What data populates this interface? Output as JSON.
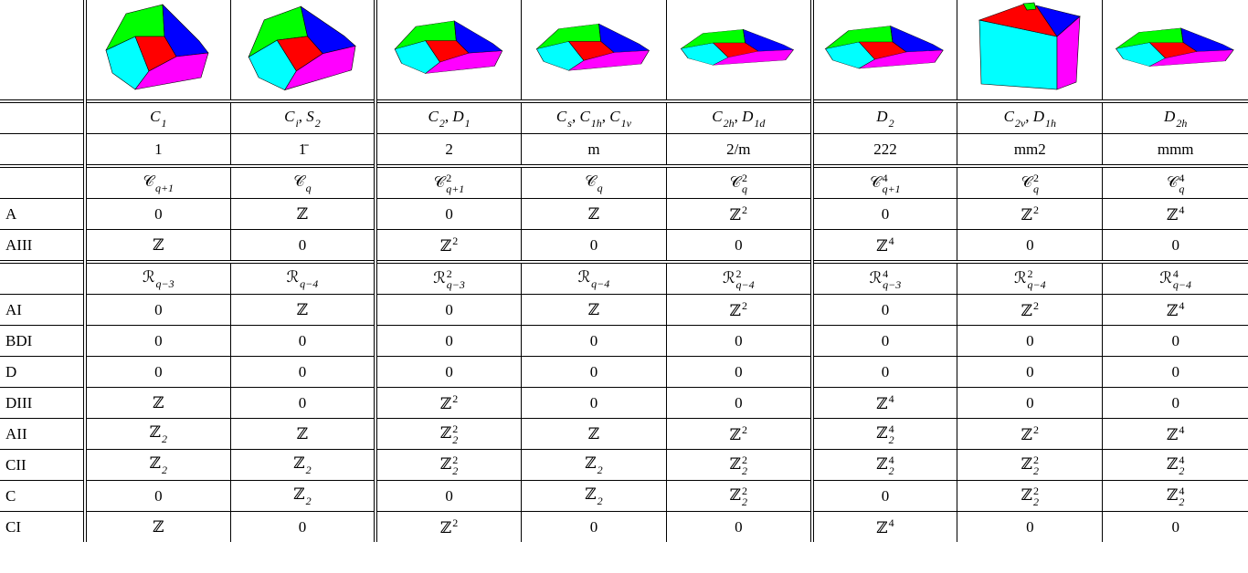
{
  "table": {
    "rows": [
      [
        null,
        [
          {
            "b": "C",
            "sub": "1"
          }
        ],
        [
          {
            "b": "C",
            "sub": "i"
          },
          ", ",
          {
            "b": "S",
            "sub": "2"
          }
        ],
        [
          {
            "b": "C",
            "sub": "2"
          },
          ", ",
          {
            "b": "D",
            "sub": "1"
          }
        ],
        [
          {
            "b": "C",
            "sub": "s"
          },
          ", ",
          {
            "b": "C",
            "sub": "1h"
          },
          ", ",
          {
            "b": "C",
            "sub": "1v"
          }
        ],
        [
          {
            "b": "C",
            "sub": "2h"
          },
          ", ",
          {
            "b": "D",
            "sub": "1d"
          }
        ],
        [
          {
            "b": "D",
            "sub": "2"
          }
        ],
        [
          {
            "b": "C",
            "sub": "2v"
          },
          ", ",
          {
            "b": "D",
            "sub": "1h"
          }
        ],
        [
          {
            "b": "D",
            "sub": "2h"
          }
        ]
      ],
      [
        null,
        "1",
        "1̄",
        "2",
        "m",
        "2/m",
        "222",
        "mm2",
        "mmm"
      ],
      [
        null,
        [
          {
            "b": "𝒞",
            "sub": "q+1"
          }
        ],
        [
          {
            "b": "𝒞",
            "sub": "q"
          }
        ],
        [
          {
            "b": "𝒞",
            "sup": "2",
            "sub": "q+1"
          }
        ],
        [
          {
            "b": "𝒞",
            "sub": "q"
          }
        ],
        [
          {
            "b": "𝒞",
            "sup": "2",
            "sub": "q"
          }
        ],
        [
          {
            "b": "𝒞",
            "sup": "4",
            "sub": "q+1"
          }
        ],
        [
          {
            "b": "𝒞",
            "sup": "2",
            "sub": "q"
          }
        ],
        [
          {
            "b": "𝒞",
            "sup": "4",
            "sub": "q"
          }
        ]
      ],
      [
        "A",
        "0",
        "ℤ",
        "0",
        "ℤ",
        [
          {
            "b": "ℤ",
            "sup": "2"
          }
        ],
        "0",
        [
          {
            "b": "ℤ",
            "sup": "2"
          }
        ],
        [
          {
            "b": "ℤ",
            "sup": "4"
          }
        ]
      ],
      [
        "AIII",
        "ℤ",
        "0",
        [
          {
            "b": "ℤ",
            "sup": "2"
          }
        ],
        "0",
        "0",
        [
          {
            "b": "ℤ",
            "sup": "4"
          }
        ],
        "0",
        "0"
      ],
      [
        null,
        [
          {
            "b": "ℛ",
            "sub": "q−3"
          }
        ],
        [
          {
            "b": "ℛ",
            "sub": "q−4"
          }
        ],
        [
          {
            "b": "ℛ",
            "sup": "2",
            "sub": "q−3"
          }
        ],
        [
          {
            "b": "ℛ",
            "sub": "q−4"
          }
        ],
        [
          {
            "b": "ℛ",
            "sup": "2",
            "sub": "q−4"
          }
        ],
        [
          {
            "b": "ℛ",
            "sup": "4",
            "sub": "q−3"
          }
        ],
        [
          {
            "b": "ℛ",
            "sup": "2",
            "sub": "q−4"
          }
        ],
        [
          {
            "b": "ℛ",
            "sup": "4",
            "sub": "q−4"
          }
        ]
      ],
      [
        "AI",
        "0",
        "ℤ",
        "0",
        "ℤ",
        [
          {
            "b": "ℤ",
            "sup": "2"
          }
        ],
        "0",
        [
          {
            "b": "ℤ",
            "sup": "2"
          }
        ],
        [
          {
            "b": "ℤ",
            "sup": "4"
          }
        ]
      ],
      [
        "BDI",
        "0",
        "0",
        "0",
        "0",
        "0",
        "0",
        "0",
        "0"
      ],
      [
        "D",
        "0",
        "0",
        "0",
        "0",
        "0",
        "0",
        "0",
        "0"
      ],
      [
        "DIII",
        "ℤ",
        "0",
        [
          {
            "b": "ℤ",
            "sup": "2"
          }
        ],
        "0",
        "0",
        [
          {
            "b": "ℤ",
            "sup": "4"
          }
        ],
        "0",
        "0"
      ],
      [
        "AII",
        [
          {
            "b": "ℤ",
            "sub": "2"
          }
        ],
        "ℤ",
        [
          {
            "b": "ℤ",
            "sup": "2",
            "sub": "2"
          }
        ],
        "ℤ",
        [
          {
            "b": "ℤ",
            "sup": "2"
          }
        ],
        [
          {
            "b": "ℤ",
            "sup": "4",
            "sub": "2"
          }
        ],
        [
          {
            "b": "ℤ",
            "sup": "2"
          }
        ],
        [
          {
            "b": "ℤ",
            "sup": "4"
          }
        ]
      ],
      [
        "CII",
        [
          {
            "b": "ℤ",
            "sub": "2"
          }
        ],
        [
          {
            "b": "ℤ",
            "sub": "2"
          }
        ],
        [
          {
            "b": "ℤ",
            "sup": "2",
            "sub": "2"
          }
        ],
        [
          {
            "b": "ℤ",
            "sub": "2"
          }
        ],
        [
          {
            "b": "ℤ",
            "sup": "2",
            "sub": "2"
          }
        ],
        [
          {
            "b": "ℤ",
            "sup": "4",
            "sub": "2"
          }
        ],
        [
          {
            "b": "ℤ",
            "sup": "2",
            "sub": "2"
          }
        ],
        [
          {
            "b": "ℤ",
            "sup": "4",
            "sub": "2"
          }
        ]
      ],
      [
        "C",
        "0",
        [
          {
            "b": "ℤ",
            "sub": "2"
          }
        ],
        "0",
        [
          {
            "b": "ℤ",
            "sub": "2"
          }
        ],
        [
          {
            "b": "ℤ",
            "sup": "2",
            "sub": "2"
          }
        ],
        "0",
        [
          {
            "b": "ℤ",
            "sup": "2",
            "sub": "2"
          }
        ],
        [
          {
            "b": "ℤ",
            "sup": "4",
            "sub": "2"
          }
        ]
      ],
      [
        "CI",
        "ℤ",
        "0",
        [
          {
            "b": "ℤ",
            "sup": "2"
          }
        ],
        "0",
        "0",
        [
          {
            "b": "ℤ",
            "sup": "4"
          }
        ],
        "0",
        "0"
      ]
    ]
  }
}
